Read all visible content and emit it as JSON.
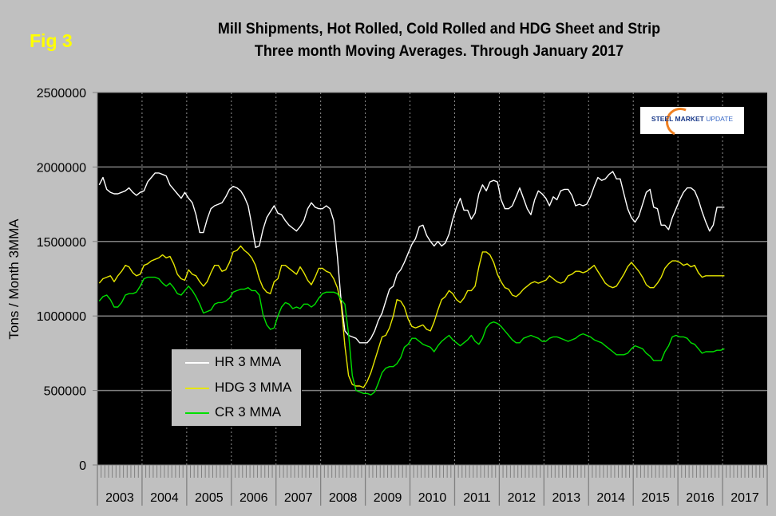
{
  "figure_label": "Fig 3",
  "logo": {
    "part1": "STEEL ",
    "part2": "MARKET",
    "part3": " UPDATE",
    "color_dark": "#1a3a8a",
    "color_light": "#3a6ac8",
    "arc_color": "#f08020"
  },
  "chart_data": {
    "type": "line",
    "title": "Mill Shipments, Hot Rolled, Cold Rolled and HDG Sheet and Strip",
    "subtitle": "Three month Moving Averages. Through January 2017",
    "xlabel": "",
    "ylabel": "Tons / Month 3MMA",
    "ylim": [
      0,
      2500000
    ],
    "yticks": [
      0,
      500000,
      1000000,
      1500000,
      2000000,
      2500000
    ],
    "ytick_labels": [
      "0",
      "500000",
      "1000000",
      "1500000",
      "2000000",
      "2500000"
    ],
    "x_start": "2003-01",
    "x_frequency": "monthly",
    "x_categories": [
      "2003",
      "2004",
      "2005",
      "2006",
      "2007",
      "2008",
      "2009",
      "2010",
      "2011",
      "2012",
      "2013",
      "2014",
      "2015",
      "2016",
      "2017"
    ],
    "grid": {
      "horizontal": true,
      "vertical": "dotted at year boundaries"
    },
    "legend_position": "lower-left",
    "background": "#000000",
    "series": [
      {
        "name": "HR 3 MMA",
        "color": "#ffffff",
        "values": [
          1880000,
          1930000,
          1850000,
          1830000,
          1820000,
          1820000,
          1830000,
          1840000,
          1860000,
          1830000,
          1810000,
          1830000,
          1840000,
          1900000,
          1930000,
          1960000,
          1960000,
          1950000,
          1940000,
          1880000,
          1850000,
          1820000,
          1790000,
          1830000,
          1790000,
          1760000,
          1680000,
          1560000,
          1560000,
          1650000,
          1720000,
          1740000,
          1750000,
          1760000,
          1800000,
          1850000,
          1870000,
          1860000,
          1840000,
          1800000,
          1740000,
          1610000,
          1460000,
          1470000,
          1580000,
          1660000,
          1700000,
          1740000,
          1690000,
          1680000,
          1640000,
          1610000,
          1590000,
          1570000,
          1600000,
          1640000,
          1720000,
          1760000,
          1730000,
          1720000,
          1720000,
          1740000,
          1720000,
          1640000,
          1400000,
          1100000,
          900000,
          870000,
          860000,
          850000,
          820000,
          820000,
          820000,
          850000,
          900000,
          970000,
          1020000,
          1100000,
          1180000,
          1200000,
          1280000,
          1310000,
          1360000,
          1420000,
          1480000,
          1520000,
          1600000,
          1610000,
          1540000,
          1500000,
          1470000,
          1500000,
          1470000,
          1490000,
          1550000,
          1650000,
          1730000,
          1790000,
          1710000,
          1710000,
          1650000,
          1690000,
          1820000,
          1880000,
          1840000,
          1900000,
          1910000,
          1900000,
          1780000,
          1720000,
          1720000,
          1740000,
          1800000,
          1860000,
          1790000,
          1720000,
          1680000,
          1780000,
          1840000,
          1820000,
          1790000,
          1740000,
          1800000,
          1780000,
          1840000,
          1850000,
          1850000,
          1810000,
          1740000,
          1750000,
          1740000,
          1750000,
          1800000,
          1870000,
          1930000,
          1910000,
          1920000,
          1950000,
          1970000,
          1920000,
          1920000,
          1820000,
          1720000,
          1660000,
          1630000,
          1670000,
          1750000,
          1830000,
          1850000,
          1730000,
          1720000,
          1610000,
          1610000,
          1580000,
          1660000,
          1720000,
          1780000,
          1830000,
          1860000,
          1860000,
          1840000,
          1780000,
          1700000,
          1630000,
          1570000,
          1610000,
          1730000,
          1730000,
          1730000
        ]
      },
      {
        "name": "HDG 3 MMA",
        "color": "#e6e600",
        "values": [
          1220000,
          1250000,
          1260000,
          1270000,
          1230000,
          1270000,
          1300000,
          1340000,
          1330000,
          1290000,
          1270000,
          1280000,
          1340000,
          1350000,
          1370000,
          1380000,
          1390000,
          1410000,
          1390000,
          1400000,
          1350000,
          1280000,
          1250000,
          1240000,
          1310000,
          1280000,
          1270000,
          1230000,
          1200000,
          1230000,
          1290000,
          1340000,
          1340000,
          1300000,
          1310000,
          1360000,
          1430000,
          1440000,
          1470000,
          1440000,
          1420000,
          1390000,
          1340000,
          1250000,
          1190000,
          1160000,
          1150000,
          1230000,
          1250000,
          1340000,
          1340000,
          1320000,
          1300000,
          1280000,
          1330000,
          1290000,
          1240000,
          1210000,
          1260000,
          1320000,
          1320000,
          1300000,
          1290000,
          1250000,
          1190000,
          1080000,
          800000,
          600000,
          540000,
          530000,
          530000,
          520000,
          560000,
          620000,
          700000,
          780000,
          860000,
          870000,
          920000,
          1000000,
          1110000,
          1100000,
          1060000,
          980000,
          930000,
          920000,
          930000,
          940000,
          910000,
          900000,
          960000,
          1040000,
          1110000,
          1130000,
          1170000,
          1150000,
          1110000,
          1090000,
          1120000,
          1170000,
          1170000,
          1200000,
          1330000,
          1430000,
          1430000,
          1410000,
          1360000,
          1280000,
          1230000,
          1190000,
          1180000,
          1140000,
          1130000,
          1150000,
          1180000,
          1200000,
          1220000,
          1230000,
          1220000,
          1230000,
          1240000,
          1270000,
          1250000,
          1230000,
          1220000,
          1230000,
          1270000,
          1280000,
          1300000,
          1300000,
          1290000,
          1300000,
          1320000,
          1340000,
          1300000,
          1260000,
          1220000,
          1200000,
          1190000,
          1200000,
          1240000,
          1280000,
          1330000,
          1360000,
          1330000,
          1300000,
          1260000,
          1210000,
          1190000,
          1190000,
          1220000,
          1260000,
          1320000,
          1350000,
          1370000,
          1370000,
          1360000,
          1340000,
          1350000,
          1330000,
          1340000,
          1290000,
          1260000,
          1270000,
          1270000,
          1270000,
          1270000,
          1270000,
          1270000
        ]
      },
      {
        "name": "CR 3 MMA",
        "color": "#00e000",
        "values": [
          1100000,
          1130000,
          1140000,
          1110000,
          1060000,
          1060000,
          1090000,
          1140000,
          1150000,
          1150000,
          1160000,
          1200000,
          1250000,
          1260000,
          1260000,
          1260000,
          1250000,
          1220000,
          1200000,
          1220000,
          1190000,
          1150000,
          1140000,
          1170000,
          1200000,
          1170000,
          1130000,
          1080000,
          1020000,
          1030000,
          1040000,
          1080000,
          1090000,
          1090000,
          1100000,
          1120000,
          1160000,
          1170000,
          1180000,
          1180000,
          1190000,
          1170000,
          1170000,
          1140000,
          1010000,
          940000,
          910000,
          920000,
          1000000,
          1060000,
          1090000,
          1080000,
          1050000,
          1060000,
          1050000,
          1080000,
          1080000,
          1060000,
          1080000,
          1120000,
          1150000,
          1160000,
          1160000,
          1160000,
          1150000,
          1110000,
          1080000,
          880000,
          600000,
          500000,
          490000,
          480000,
          480000,
          470000,
          490000,
          550000,
          620000,
          650000,
          660000,
          660000,
          680000,
          720000,
          790000,
          810000,
          850000,
          850000,
          830000,
          810000,
          800000,
          790000,
          760000,
          800000,
          830000,
          850000,
          870000,
          840000,
          820000,
          800000,
          820000,
          840000,
          870000,
          830000,
          810000,
          850000,
          920000,
          950000,
          960000,
          950000,
          930000,
          900000,
          870000,
          840000,
          820000,
          820000,
          850000,
          860000,
          870000,
          860000,
          850000,
          830000,
          830000,
          850000,
          860000,
          860000,
          850000,
          840000,
          830000,
          840000,
          850000,
          870000,
          880000,
          870000,
          860000,
          840000,
          830000,
          820000,
          800000,
          780000,
          760000,
          740000,
          740000,
          740000,
          750000,
          780000,
          800000,
          790000,
          780000,
          750000,
          730000,
          700000,
          700000,
          700000,
          760000,
          800000,
          860000,
          870000,
          860000,
          860000,
          850000,
          820000,
          810000,
          780000,
          750000,
          760000,
          760000,
          760000,
          770000,
          770000,
          780000
        ]
      }
    ]
  }
}
